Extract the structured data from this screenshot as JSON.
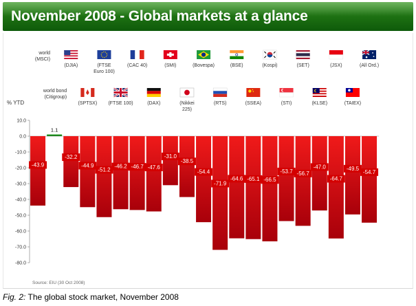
{
  "header": {
    "title": "November 2008 - Global markets at a glance"
  },
  "caption": {
    "label": "Fig. 2:",
    "text": "The global stock market, November 2008"
  },
  "source": "Source:  EIU (30 Oct 2008)",
  "colors": {
    "negative": "#c0000a",
    "positive": "#1f8a1f",
    "header": "#1f7313"
  },
  "chart_data": {
    "type": "bar",
    "ylabel": "% YTD",
    "ylim": [
      -80,
      10
    ],
    "yticks": [
      10,
      0,
      -10,
      -20,
      -30,
      -40,
      -50,
      -60,
      -70,
      -80
    ],
    "ytick_labels": [
      "10.0",
      "0.0",
      "-10.0",
      "-20.0",
      "-30.0",
      "-40.0",
      "-50.0",
      "-60.0",
      "-70.0",
      "-80.0"
    ],
    "grid": false,
    "categories": [
      {
        "label": "world\n(MSCI)",
        "icon": "world-label",
        "row": 0
      },
      {
        "label": "world bond\n(Citigroup)",
        "icon": "world-bond-label",
        "row": 1
      },
      {
        "label": "(DJIA)",
        "icon": "usa-flag-icon",
        "row": 0
      },
      {
        "label": "(SPTSX)",
        "icon": "canada-flag-icon",
        "row": 1
      },
      {
        "label": "(FTSE\nEuro 100)",
        "icon": "eu-flag-icon",
        "row": 0
      },
      {
        "label": "(FTSE 100)",
        "icon": "uk-flag-icon",
        "row": 1
      },
      {
        "label": "(CAC 40)",
        "icon": "france-flag-icon",
        "row": 0
      },
      {
        "label": "(DAX)",
        "icon": "germany-flag-icon",
        "row": 1
      },
      {
        "label": "(SMI)",
        "icon": "switzerland-flag-icon",
        "row": 0
      },
      {
        "label": "(Nikkei\n225)",
        "icon": "japan-flag-icon",
        "row": 1
      },
      {
        "label": "(Bovespa)",
        "icon": "brazil-flag-icon",
        "row": 0
      },
      {
        "label": "(RTS)",
        "icon": "russia-flag-icon",
        "row": 1
      },
      {
        "label": "(BSE)",
        "icon": "india-flag-icon",
        "row": 0
      },
      {
        "label": "(SSEA)",
        "icon": "china-flag-icon",
        "row": 1
      },
      {
        "label": "(Kospi)",
        "icon": "south-korea-flag-icon",
        "row": 0
      },
      {
        "label": "(STI)",
        "icon": "singapore-flag-icon",
        "row": 1
      },
      {
        "label": "(SET)",
        "icon": "thailand-flag-icon",
        "row": 0
      },
      {
        "label": "(KLSE)",
        "icon": "malaysia-flag-icon",
        "row": 1
      },
      {
        "label": "(JSX)",
        "icon": "indonesia-flag-icon",
        "row": 0
      },
      {
        "label": "(TAIEX)",
        "icon": "taiwan-flag-icon",
        "row": 1
      },
      {
        "label": "(All Ord.)",
        "icon": "australia-flag-icon",
        "row": 0
      }
    ],
    "values": [
      -43.9,
      1.1,
      -32.2,
      -44.9,
      -51.2,
      -46.2,
      -46.7,
      -47.6,
      -31.0,
      -38.5,
      -54.4,
      -71.9,
      -64.6,
      -65.1,
      -66.5,
      -53.7,
      -56.7,
      -47.0,
      -64.7,
      -49.5,
      -54.7
    ],
    "value_labels": [
      "-43.9",
      "1.1",
      "-32.2",
      "-44.9",
      "-51.2",
      "-46.2",
      "-46.7",
      "-47.6",
      "-31.0",
      "-38.5",
      "-54.4",
      "-71.9",
      "-64.6",
      "-65.1",
      "-66.5",
      "-53.7",
      "-56.7",
      "-47.0",
      "-64.7",
      "-49.5",
      "-54.7"
    ]
  }
}
